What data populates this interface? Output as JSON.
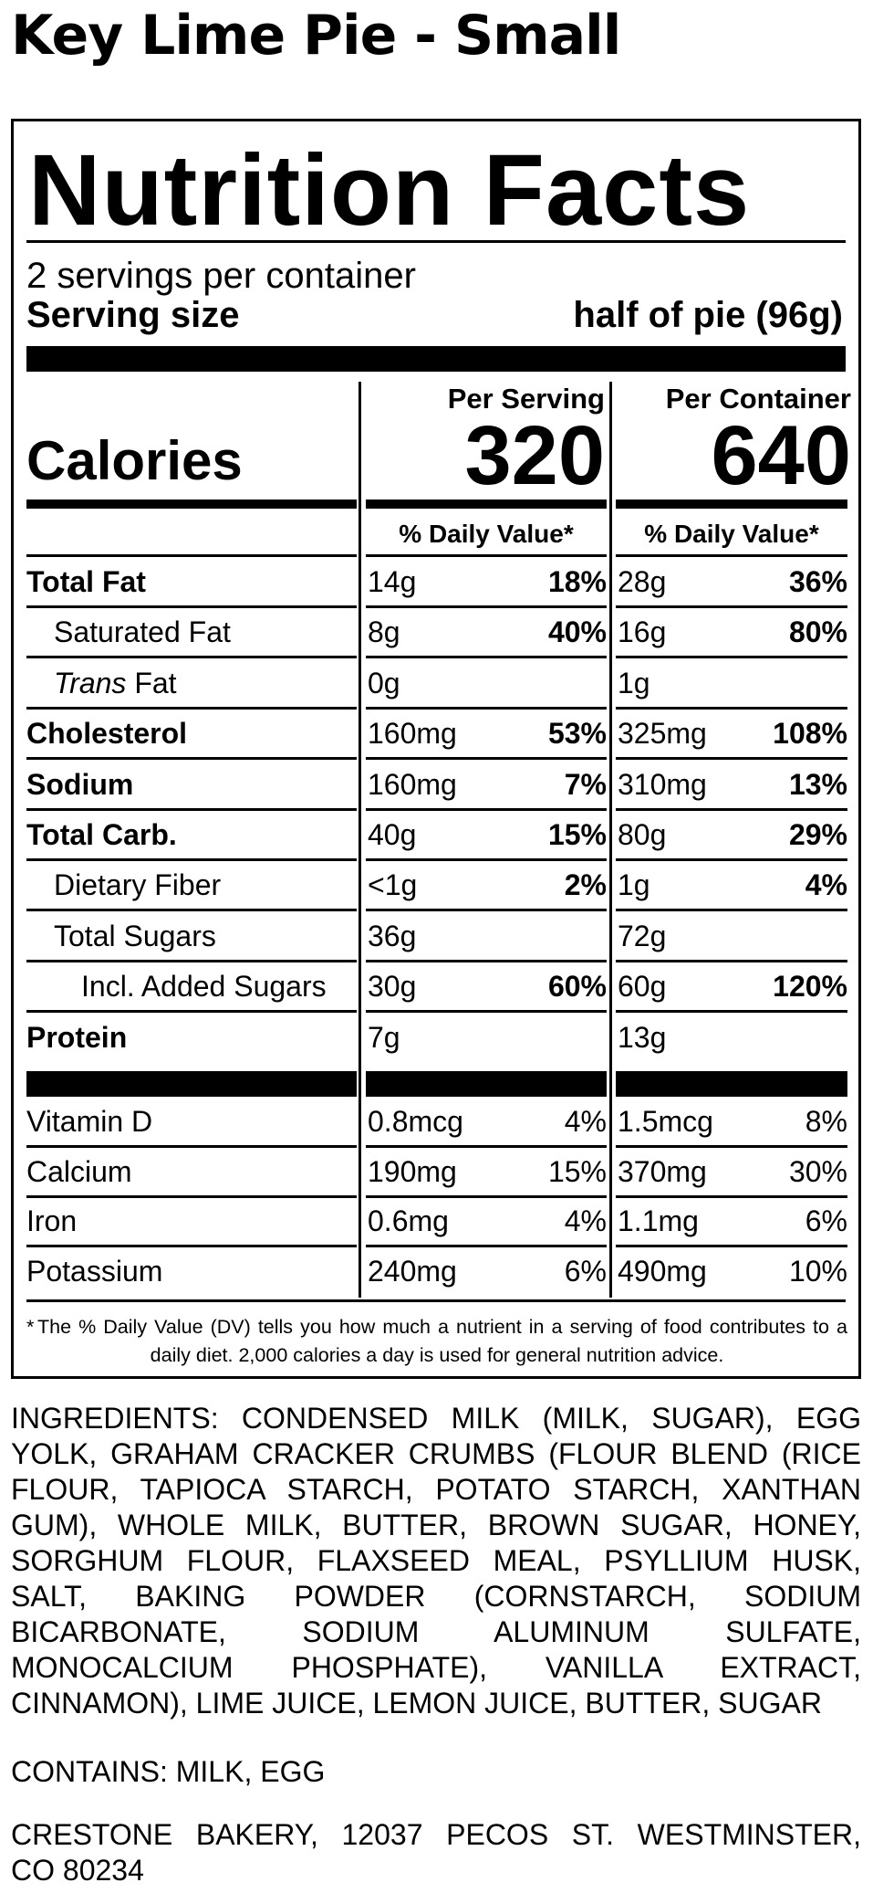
{
  "product_title": "Key Lime Pie - Small",
  "label": {
    "title": "Nutrition Facts",
    "servings_per_container": "2 servings per container",
    "serving_size_label": "Serving size",
    "serving_size_value": "half of pie (96g)",
    "per_serving_header": "Per Serving",
    "per_container_header": "Per Container",
    "calories_label": "Calories",
    "calories_per_serving": "320",
    "calories_per_container": "640",
    "dv_header": "% Daily Value*",
    "rows": [
      {
        "label": "Total Fat",
        "serving_amount": "14g",
        "serving_dv": "18%",
        "container_amount": "28g",
        "container_dv": "36%"
      },
      {
        "label": "Saturated Fat",
        "serving_amount": "8g",
        "serving_dv": "40%",
        "container_amount": "16g",
        "container_dv": "80%"
      },
      {
        "label_italic": "Trans",
        "label_rest": " Fat",
        "serving_amount": "0g",
        "serving_dv": "",
        "container_amount": "1g",
        "container_dv": ""
      },
      {
        "label": "Cholesterol",
        "serving_amount": "160mg",
        "serving_dv": "53%",
        "container_amount": "325mg",
        "container_dv": "108%"
      },
      {
        "label": "Sodium",
        "serving_amount": "160mg",
        "serving_dv": "7%",
        "container_amount": "310mg",
        "container_dv": "13%"
      },
      {
        "label": "Total Carb.",
        "serving_amount": "40g",
        "serving_dv": "15%",
        "container_amount": "80g",
        "container_dv": "29%"
      },
      {
        "label": "Dietary Fiber",
        "serving_amount": "<1g",
        "serving_dv": "2%",
        "container_amount": "1g",
        "container_dv": "4%"
      },
      {
        "label": "Total Sugars",
        "serving_amount": "36g",
        "serving_dv": "",
        "container_amount": "72g",
        "container_dv": ""
      },
      {
        "label": "Incl. Added Sugars",
        "serving_amount": "30g",
        "serving_dv": "60%",
        "container_amount": "60g",
        "container_dv": "120%"
      },
      {
        "label": "Protein",
        "serving_amount": "7g",
        "serving_dv": "",
        "container_amount": "13g",
        "container_dv": ""
      }
    ],
    "vitamins": [
      {
        "label": "Vitamin D",
        "serving_amount": "0.8mcg",
        "serving_dv": "4%",
        "container_amount": "1.5mcg",
        "container_dv": "8%"
      },
      {
        "label": "Calcium",
        "serving_amount": "190mg",
        "serving_dv": "15%",
        "container_amount": "370mg",
        "container_dv": "30%"
      },
      {
        "label": "Iron",
        "serving_amount": "0.6mg",
        "serving_dv": "4%",
        "container_amount": "1.1mg",
        "container_dv": "6%"
      },
      {
        "label": "Potassium",
        "serving_amount": "240mg",
        "serving_dv": "6%",
        "container_amount": "490mg",
        "container_dv": "10%"
      }
    ],
    "footnote_star": "*",
    "footnote": "The % Daily Value (DV) tells you how much a nutrient in a serving of food contributes to a daily diet. 2,000 calories a day is used for general nutrition advice."
  },
  "ingredients": "INGREDIENTS: CONDENSED MILK (MILK, SUGAR), EGG YOLK, GRAHAM CRACKER CRUMBS (FLOUR BLEND (RICE FLOUR, TAPIOCA STARCH, POTATO STARCH, XANTHAN GUM), WHOLE MILK, BUTTER, BROWN SUGAR, HONEY, SORGHUM FLOUR, FLAXSEED MEAL, PSYLLIUM HUSK, SALT, BAKING POWDER (CORNSTARCH, SODIUM BICARBONATE, SODIUM ALUMINUM SULFATE, MONOCALCIUM PHOSPHATE), VANILLA EXTRACT, CINNAMON), LIME JUICE, LEMON JUICE, BUTTER, SUGAR",
  "contains": "CONTAINS: MILK, EGG",
  "address_line1": "CRESTONE BAKERY, 12037 PECOS ST. WESTMINSTER,",
  "address_line2": "CO 80234"
}
